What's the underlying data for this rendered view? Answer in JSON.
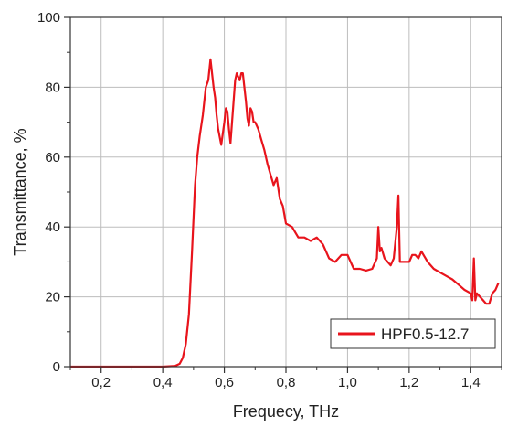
{
  "chart_data": {
    "type": "line",
    "title": "",
    "xlabel": "Frequecy, THz",
    "ylabel": "Transmittance, %",
    "xlim": [
      0.1,
      1.5
    ],
    "ylim": [
      0,
      100
    ],
    "x_ticks": [
      0.2,
      0.4,
      0.6,
      0.8,
      1.0,
      1.2,
      1.4
    ],
    "x_tick_labels": [
      "0,2",
      "0,4",
      "0,6",
      "0,8",
      "1,0",
      "1,2",
      "1,4"
    ],
    "y_ticks": [
      0,
      20,
      40,
      60,
      80,
      100
    ],
    "y_tick_labels": [
      "0",
      "20",
      "40",
      "60",
      "80",
      "100"
    ],
    "grid": true,
    "legend_position": "bottom-right",
    "series": [
      {
        "name": "HPF0.5-12.7",
        "color": "#e8141c",
        "x": [
          0.1,
          0.2,
          0.3,
          0.4,
          0.44,
          0.455,
          0.465,
          0.475,
          0.485,
          0.495,
          0.505,
          0.512,
          0.52,
          0.53,
          0.54,
          0.548,
          0.555,
          0.56,
          0.565,
          0.57,
          0.575,
          0.58,
          0.59,
          0.6,
          0.605,
          0.61,
          0.615,
          0.62,
          0.625,
          0.63,
          0.635,
          0.64,
          0.645,
          0.65,
          0.655,
          0.66,
          0.665,
          0.67,
          0.675,
          0.68,
          0.685,
          0.69,
          0.695,
          0.7,
          0.71,
          0.72,
          0.73,
          0.74,
          0.75,
          0.76,
          0.77,
          0.78,
          0.79,
          0.8,
          0.82,
          0.84,
          0.86,
          0.88,
          0.9,
          0.92,
          0.94,
          0.96,
          0.98,
          1.0,
          1.02,
          1.04,
          1.06,
          1.08,
          1.095,
          1.1,
          1.105,
          1.11,
          1.12,
          1.13,
          1.14,
          1.15,
          1.16,
          1.165,
          1.17,
          1.18,
          1.19,
          1.2,
          1.21,
          1.22,
          1.23,
          1.24,
          1.26,
          1.28,
          1.3,
          1.32,
          1.34,
          1.36,
          1.38,
          1.4,
          1.405,
          1.41,
          1.415,
          1.42,
          1.43,
          1.44,
          1.45,
          1.46,
          1.47,
          1.48,
          1.49
        ],
        "y": [
          0,
          0,
          0,
          0,
          0.2,
          0.8,
          2.5,
          6.5,
          15,
          33,
          52,
          60,
          66,
          72,
          80,
          82,
          88,
          84,
          80,
          77,
          72,
          68,
          63.5,
          70,
          74,
          73,
          68,
          64,
          70,
          76,
          82,
          84,
          83,
          82,
          84,
          84,
          80,
          76,
          71,
          69,
          74,
          73,
          70,
          70,
          68,
          65,
          62,
          58,
          55,
          52,
          54,
          48,
          46,
          41,
          40,
          37,
          37,
          36,
          37,
          35,
          31,
          30,
          32,
          32,
          28,
          28,
          27.5,
          28,
          31,
          40,
          33,
          34,
          31,
          30,
          29,
          31,
          40,
          49,
          30,
          30,
          30,
          30,
          32,
          32,
          31,
          33,
          30,
          28,
          27,
          26,
          25,
          23.5,
          22,
          21,
          19,
          31,
          19,
          21,
          20,
          19,
          18,
          18,
          21,
          22,
          24
        ]
      }
    ]
  }
}
